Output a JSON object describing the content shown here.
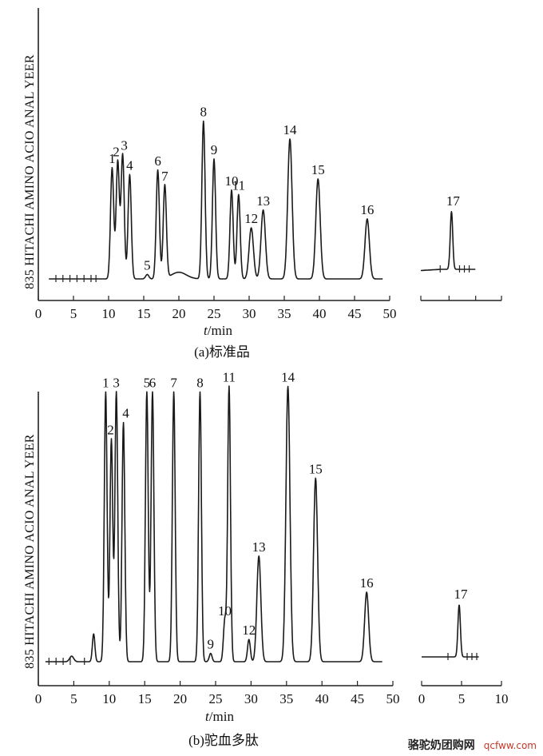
{
  "chart_data": [
    {
      "type": "line",
      "caption": "(a)标准品",
      "ylabel": "835 HITACHI AMINO ACIO ANAL YEER",
      "xlabel_italic": "t",
      "xlabel_unit": "/min",
      "xlim": [
        0,
        50
      ],
      "xticks": [
        0,
        5,
        10,
        15,
        20,
        25,
        30,
        35,
        40,
        45,
        50
      ],
      "baseline_markers": [
        2.5,
        3.5,
        4.5,
        5.5,
        6.5,
        7.5,
        8.2
      ],
      "peaks": [
        {
          "label": "1",
          "x": 10.5,
          "height": 0.5
        },
        {
          "label": "2",
          "x": 11.3,
          "height": 0.53
        },
        {
          "label": "3",
          "x": 12.0,
          "height": 0.56
        },
        {
          "label": "4",
          "x": 13.0,
          "height": 0.47
        },
        {
          "label": "5",
          "x": 15.5,
          "height": 0.02
        },
        {
          "label": "6",
          "x": 17.0,
          "height": 0.49
        },
        {
          "label": "7",
          "x": 18.0,
          "height": 0.42
        },
        {
          "label": "8",
          "x": 23.5,
          "height": 0.71
        },
        {
          "label": "9",
          "x": 25.0,
          "height": 0.54
        },
        {
          "label": "10",
          "x": 27.5,
          "height": 0.4
        },
        {
          "label": "11",
          "x": 28.5,
          "height": 0.38
        },
        {
          "label": "12",
          "x": 30.3,
          "height": 0.23
        },
        {
          "label": "13",
          "x": 32.0,
          "height": 0.31
        },
        {
          "label": "14",
          "x": 35.8,
          "height": 0.63
        },
        {
          "label": "15",
          "x": 39.8,
          "height": 0.45
        },
        {
          "label": "16",
          "x": 46.8,
          "height": 0.27
        }
      ],
      "inset": {
        "peaks": [
          {
            "label": "17",
            "height": 0.38
          }
        ]
      }
    },
    {
      "type": "line",
      "caption": "(b)驼血多肽",
      "ylabel": "835 HITACHI AMINO ACIO ANAL YEER",
      "xlabel_italic": "t",
      "xlabel_unit": "/min",
      "xlim": [
        0,
        50
      ],
      "xticks": [
        0,
        5,
        10,
        15,
        20,
        25,
        30,
        35,
        40,
        45,
        50
      ],
      "baseline_markers": [
        1.5,
        2.5,
        3.5,
        4.5,
        6.5
      ],
      "peaks": [
        {
          "label": "1",
          "x": 9.5,
          "height": 0.97
        },
        {
          "label": "2",
          "x": 10.3,
          "height": 0.8
        },
        {
          "label": "3",
          "x": 11.0,
          "height": 0.97
        },
        {
          "label": "4",
          "x": 12.0,
          "height": 0.86
        },
        {
          "label": "5",
          "x": 15.3,
          "height": 0.97
        },
        {
          "label": "6",
          "x": 16.1,
          "height": 0.97
        },
        {
          "label": "7",
          "x": 19.1,
          "height": 0.97
        },
        {
          "label": "8",
          "x": 22.8,
          "height": 0.97
        },
        {
          "label": "9",
          "x": 24.3,
          "height": 0.03
        },
        {
          "label": "10",
          "x": 26.3,
          "height": 0.15
        },
        {
          "label": "11",
          "x": 26.9,
          "height": 0.99
        },
        {
          "label": "12",
          "x": 29.7,
          "height": 0.08
        },
        {
          "label": "13",
          "x": 31.1,
          "height": 0.38
        },
        {
          "label": "14",
          "x": 35.2,
          "height": 0.99
        },
        {
          "label": "15",
          "x": 39.1,
          "height": 0.66
        },
        {
          "label": "16",
          "x": 46.3,
          "height": 0.25
        }
      ],
      "inset": {
        "xlim": [
          0,
          10
        ],
        "xticks": [
          0,
          5,
          10
        ],
        "peaks": [
          {
            "label": "17",
            "x": 4.7,
            "height": 0.21
          }
        ]
      }
    }
  ],
  "watermark": {
    "text": "骆驼奶团购网",
    "url": "qcfww.com"
  }
}
